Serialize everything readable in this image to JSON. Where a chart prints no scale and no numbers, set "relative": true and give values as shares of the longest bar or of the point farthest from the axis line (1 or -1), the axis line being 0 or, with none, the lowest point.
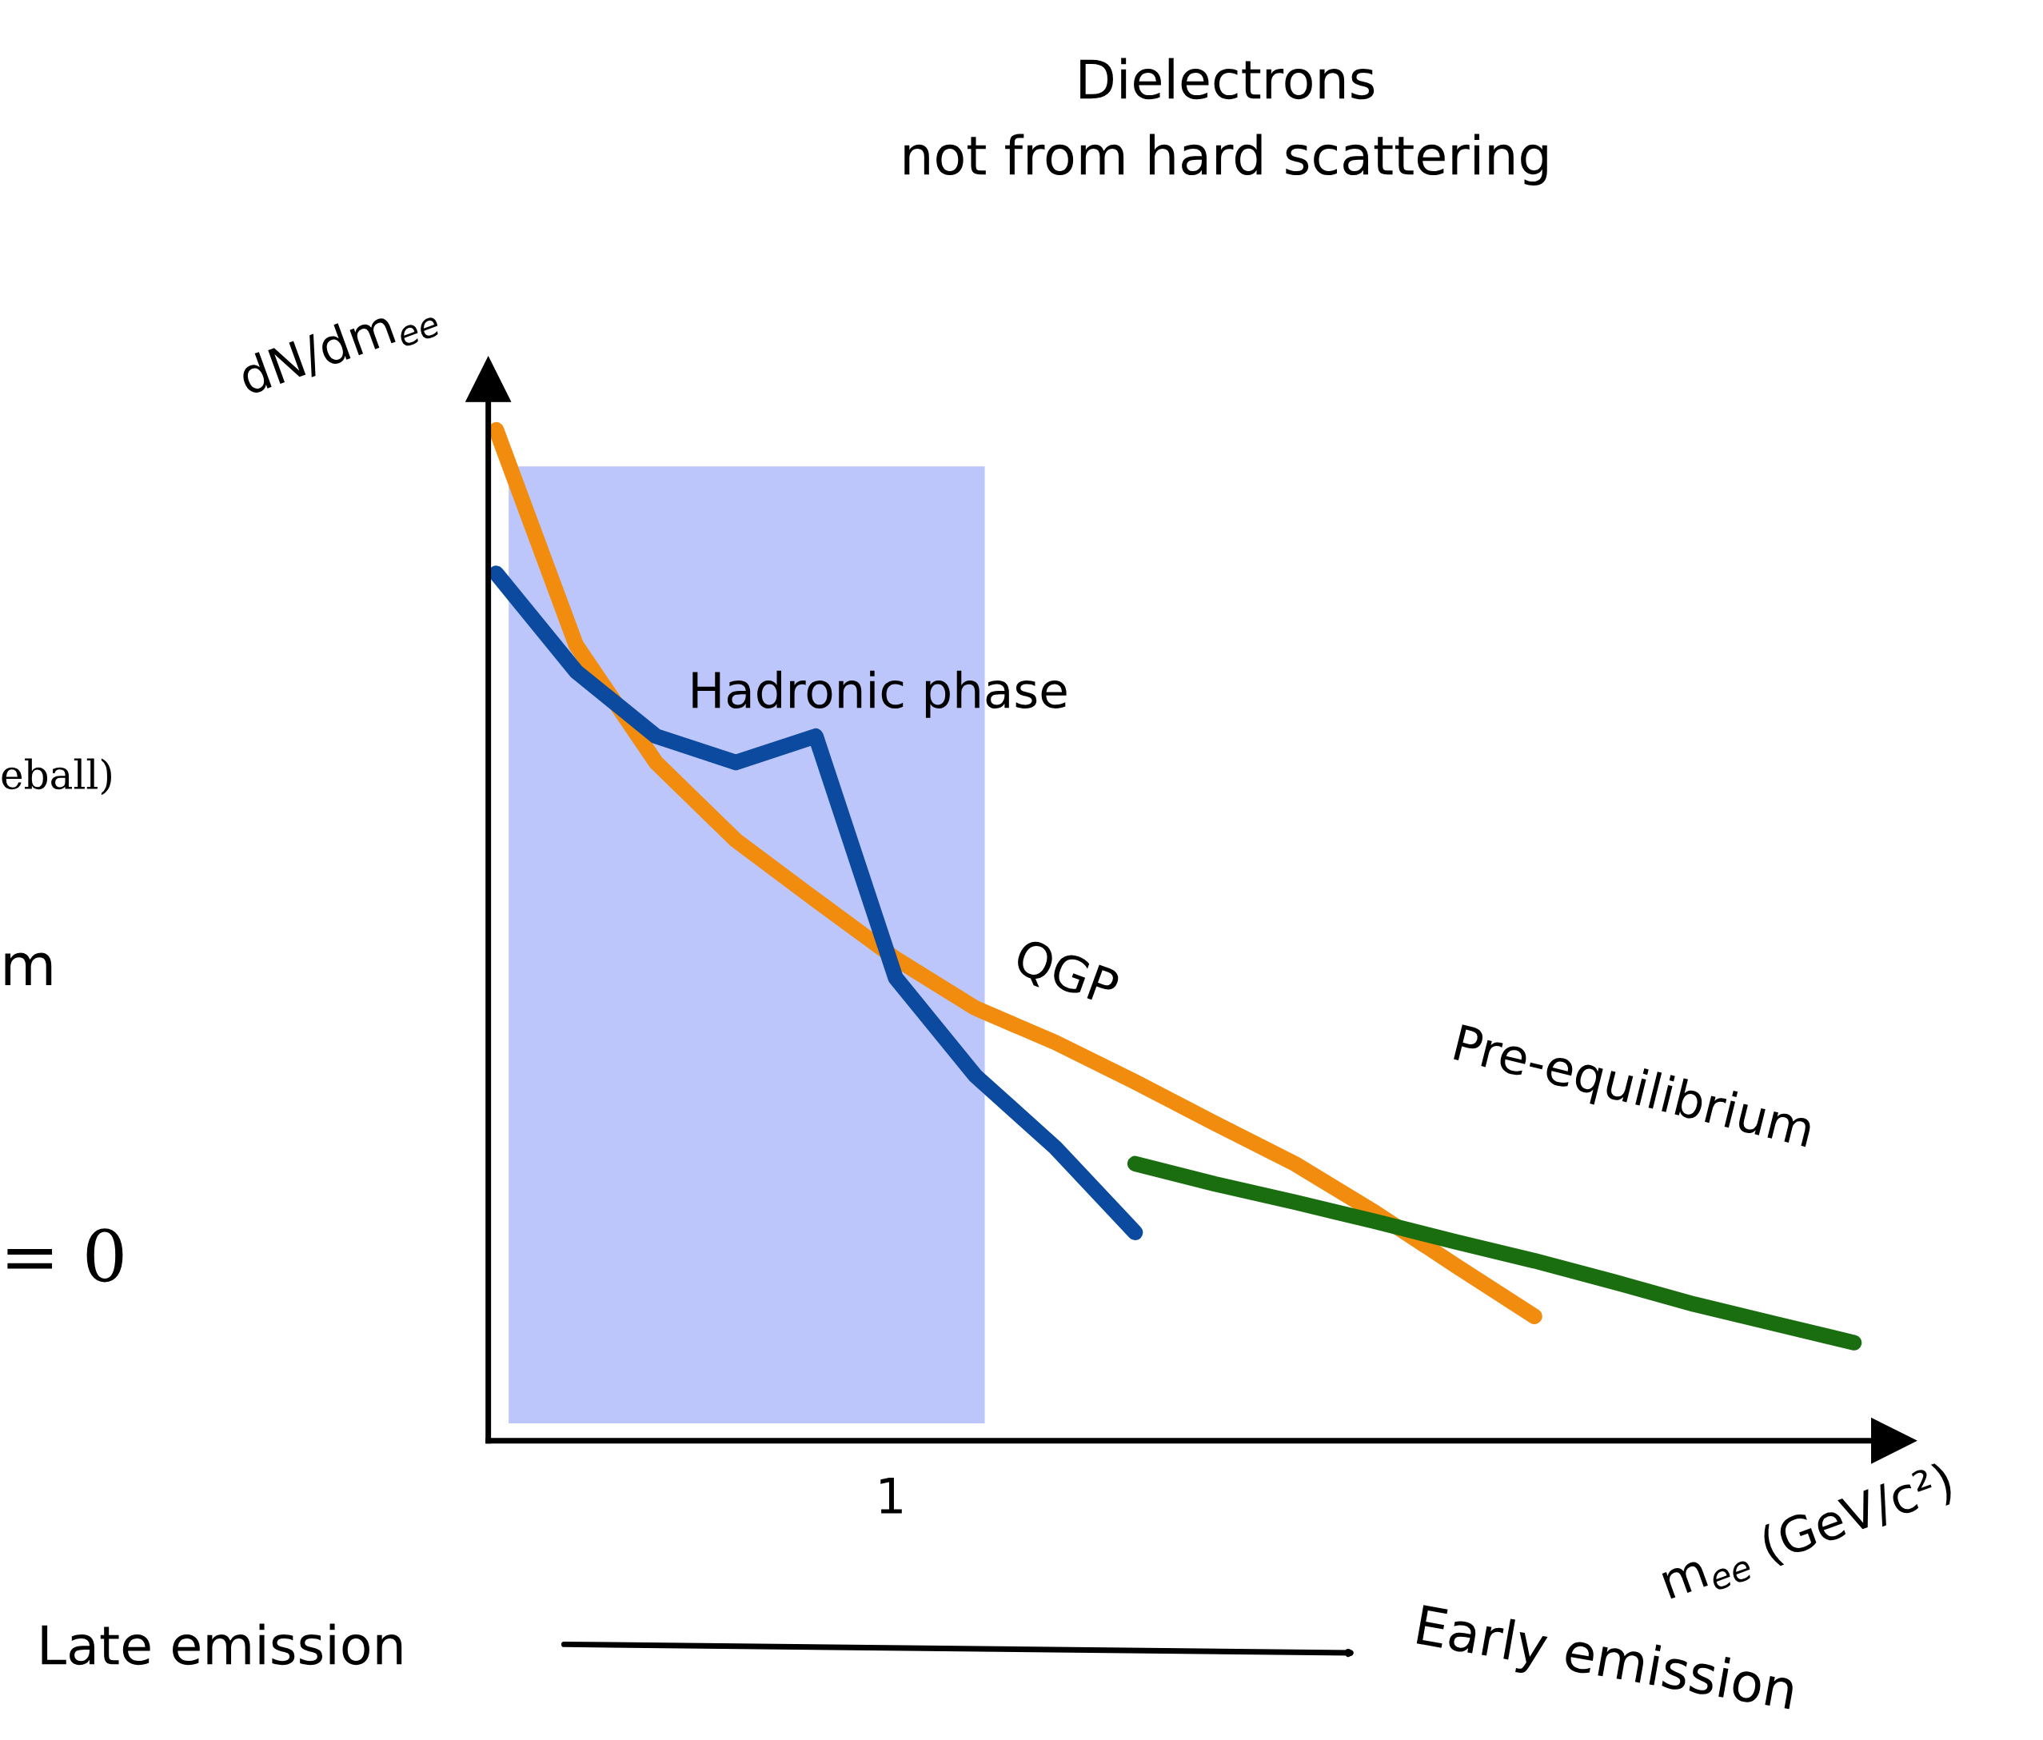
{
  "chart_data": {
    "type": "line",
    "title": "Dielectrons\nnot from hard scattering",
    "xlabel": "m$_{ee}$ (GeV/c²)",
    "ylabel": "dN/dm$_{ee}$",
    "relative": true,
    "categories": [
      null,
      null,
      null,
      null,
      null,
      null,
      null,
      null,
      null,
      null,
      null,
      null,
      null,
      null,
      null,
      null,
      null,
      null
    ],
    "series": [
      {
        "name": "QGP",
        "color": "#f28c0f",
        "values": [
          1.0,
          0.787,
          0.671,
          0.594,
          0.535,
          0.477,
          0.428,
          0.394,
          0.355,
          0.314,
          0.274,
          0.226,
          0.174,
          0.123,
          null,
          null,
          null,
          null
        ]
      },
      {
        "name": "Hadronic phase",
        "color": "#0b4a9e",
        "values": [
          0.858,
          0.761,
          0.697,
          0.671,
          0.697,
          0.458,
          0.361,
          0.29,
          0.206,
          null,
          null,
          null,
          null,
          null,
          null,
          null,
          null,
          null
        ]
      },
      {
        "name": "Pre-equilibrium",
        "color": "#1a6e10",
        "values": [
          null,
          null,
          null,
          null,
          null,
          null,
          null,
          null,
          0.274,
          0.254,
          0.236,
          0.217,
          0.197,
          0.178,
          0.157,
          0.135,
          0.116,
          0.097
        ]
      }
    ],
    "annotations": [
      "1",
      "Late emission",
      "Early emission",
      "eball)",
      "m",
      "= 0"
    ],
    "grid": false,
    "legend": false
  }
}
